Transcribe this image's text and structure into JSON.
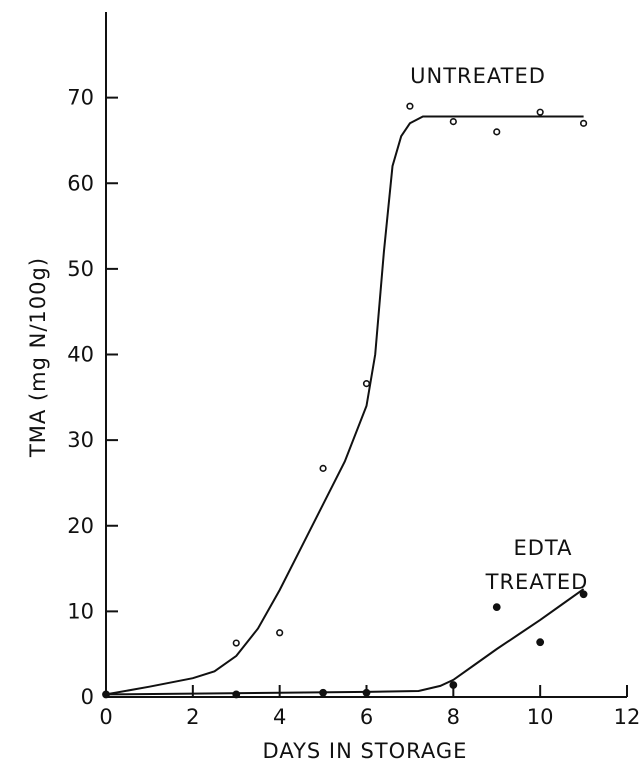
{
  "chart_data": {
    "type": "scatter",
    "xlabel": "DAYS IN STORAGE",
    "ylabel": "TMA (mg N/100g)",
    "xlim": [
      0,
      12
    ],
    "ylim": [
      0,
      80
    ],
    "x_ticks": [
      "0",
      "2",
      "4",
      "6",
      "8",
      "10",
      "12"
    ],
    "y_ticks": [
      "0",
      "10",
      "20",
      "30",
      "40",
      "50",
      "60",
      "70"
    ],
    "grid": false,
    "series": [
      {
        "name": "UNTREATED",
        "marker": "open-circle",
        "x": [
          0,
          3,
          4,
          5,
          6,
          7,
          8,
          9,
          10,
          11
        ],
        "y": [
          0.3,
          6.3,
          7.5,
          26.7,
          36.6,
          69,
          67.2,
          66,
          68.3,
          67
        ],
        "fit": {
          "x": [
            0,
            1,
            2,
            2.5,
            3,
            3.5,
            4,
            4.5,
            5,
            5.5,
            6,
            6.2,
            6.4,
            6.6,
            6.8,
            7,
            7.3,
            8,
            9,
            10,
            11
          ],
          "y": [
            0.3,
            1.2,
            2.2,
            3,
            4.8,
            8,
            12.5,
            17.5,
            22.5,
            27.5,
            34,
            40,
            52,
            62,
            65.5,
            67,
            67.8,
            67.8,
            67.8,
            67.8,
            67.8
          ]
        }
      },
      {
        "name": "EDTA TREATED",
        "label_lines": [
          "EDTA",
          "TREATED"
        ],
        "marker": "filled-circle",
        "x": [
          0,
          3,
          5,
          6,
          8,
          9,
          10,
          11
        ],
        "y": [
          0.3,
          0.3,
          0.5,
          0.5,
          1.4,
          10.5,
          6.4,
          12
        ],
        "fit": {
          "x": [
            0,
            2,
            4,
            6,
            7.2,
            7.7,
            8,
            8.5,
            9,
            9.5,
            10,
            10.5,
            11
          ],
          "y": [
            0.3,
            0.4,
            0.5,
            0.6,
            0.7,
            1.3,
            2,
            3.8,
            5.6,
            7.3,
            9,
            10.8,
            12.6
          ]
        }
      }
    ]
  }
}
